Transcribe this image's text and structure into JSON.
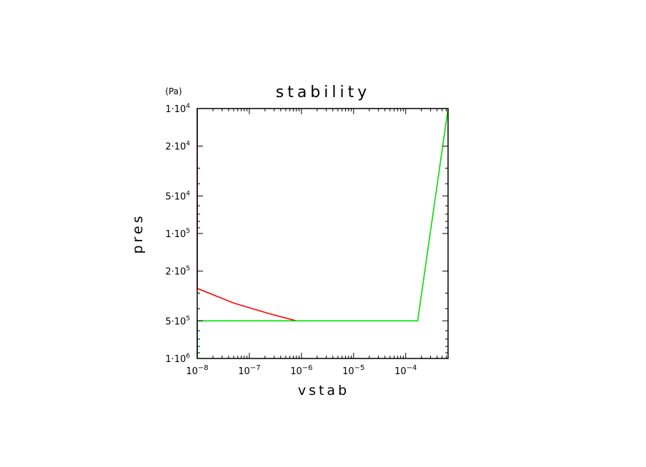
{
  "chart_data": {
    "type": "line",
    "title": "stability",
    "xlabel": "vstab",
    "ylabel": "pres",
    "yunit": "(Pa)",
    "x_scale": "log",
    "y_scale": "log",
    "y_inverted": true,
    "xlim": [
      1e-08,
      0.00065
    ],
    "ylim": [
      1000000,
      10000
    ],
    "grid": false,
    "x_ticks": [
      {
        "value": 1e-08,
        "base": "10",
        "exp": "−8"
      },
      {
        "value": 1e-07,
        "base": "10",
        "exp": "−7"
      },
      {
        "value": 1e-06,
        "base": "10",
        "exp": "−6"
      },
      {
        "value": 1e-05,
        "base": "10",
        "exp": "−5"
      },
      {
        "value": 0.0001,
        "base": "10",
        "exp": "−4"
      }
    ],
    "y_ticks": [
      {
        "value": 10000,
        "mant": "1",
        "exp": "4"
      },
      {
        "value": 20000,
        "mant": "2",
        "exp": "4"
      },
      {
        "value": 50000,
        "mant": "5",
        "exp": "4"
      },
      {
        "value": 100000,
        "mant": "1",
        "exp": "5"
      },
      {
        "value": 200000,
        "mant": "2",
        "exp": "5"
      },
      {
        "value": 500000,
        "mant": "5",
        "exp": "5"
      },
      {
        "value": 1000000,
        "mant": "1",
        "exp": "6"
      }
    ],
    "series": [
      {
        "color": "#ff0000",
        "points": [
          {
            "x": 1e-08,
            "y": 10000
          },
          {
            "x": 1e-08,
            "y": 275000
          },
          {
            "x": 5e-08,
            "y": 360000
          },
          {
            "x": 2.5e-07,
            "y": 440000
          },
          {
            "x": 8e-07,
            "y": 500000
          }
        ]
      },
      {
        "color": "#00dd00",
        "points": [
          {
            "x": 1e-08,
            "y": 1000000
          },
          {
            "x": 1e-08,
            "y": 500000
          },
          {
            "x": 8e-07,
            "y": 500000
          },
          {
            "x": 0.00017,
            "y": 500000
          },
          {
            "x": 0.00065,
            "y": 10000
          }
        ]
      }
    ]
  }
}
